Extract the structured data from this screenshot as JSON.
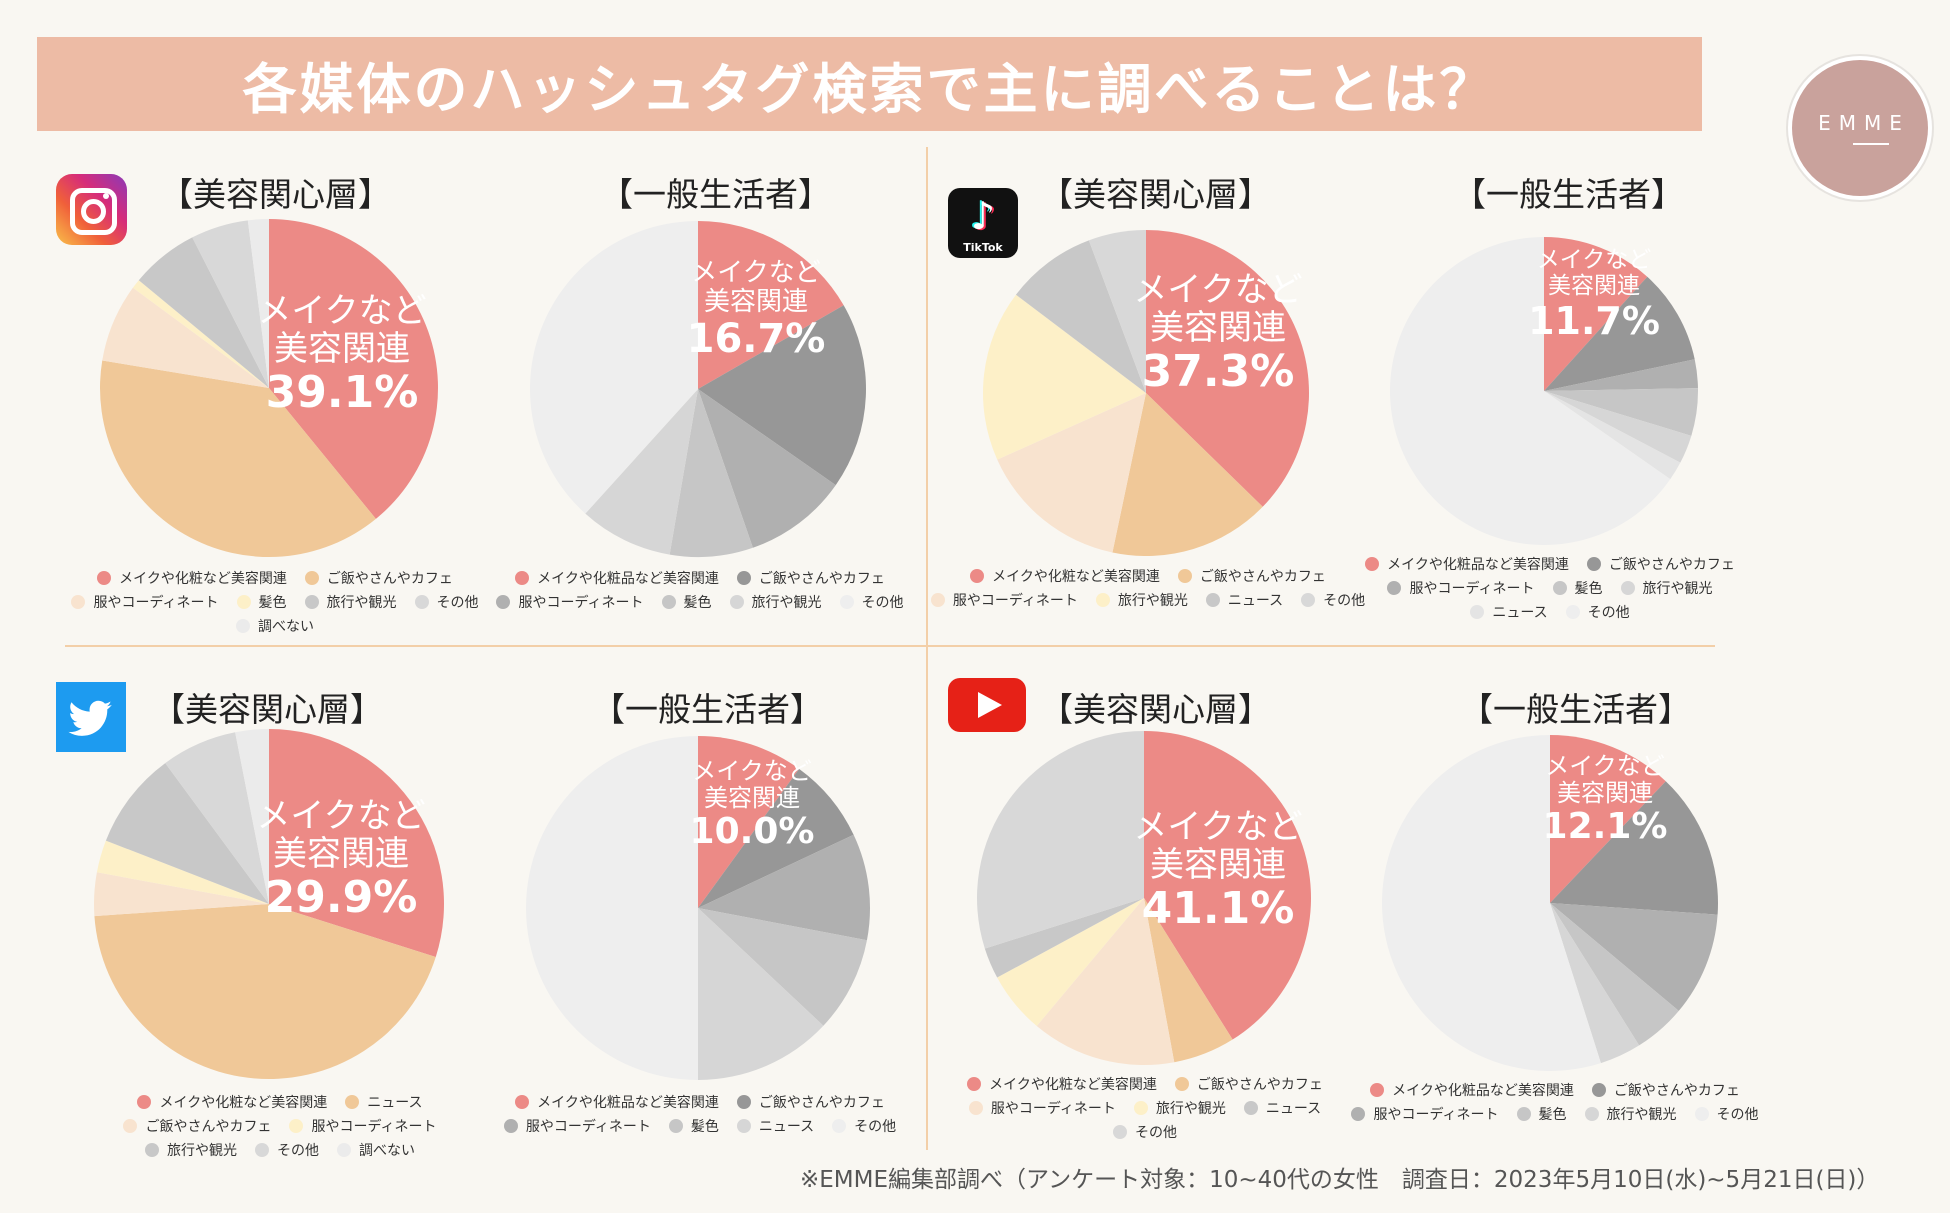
{
  "title": "各媒体のハッシュタグ検索で主に調べることは？",
  "logo_text": "EMME",
  "footer": "※EMME編集部調べ（アンケート対象：10~40代の女性　調査日：2023年5月10日(水)~5月21日(日)）",
  "platforms": [
    {
      "name": "Instagram",
      "icon": "instagram-icon"
    },
    {
      "name": "TikTok",
      "icon": "tiktok-icon",
      "icon_text": "TikTok"
    },
    {
      "name": "Twitter",
      "icon": "twitter-icon"
    },
    {
      "name": "YouTube",
      "icon": "youtube-icon"
    }
  ],
  "headers": {
    "beauty": "【美容関心層】",
    "general": "【一般生活者】"
  },
  "chart_data": [
    {
      "type": "pie",
      "platform": "Instagram",
      "title": "【美容関心層】",
      "label_lines": [
        "メイクなど",
        "美容関連"
      ],
      "data_label": "39.1%",
      "series": [
        {
          "name": "メイクや化粧など美容関連",
          "value": 39.1,
          "color": "#ec8a86"
        },
        {
          "name": "ご飯やさんやカフェ",
          "value": 38.5,
          "color": "#f0c898"
        },
        {
          "name": "服やコーディネート",
          "value": 7.5,
          "color": "#f8e3cf"
        },
        {
          "name": "髪色",
          "value": 0.9,
          "color": "#fdf0c8"
        },
        {
          "name": "旅行や観光",
          "value": 6.5,
          "color": "#c8c8c8"
        },
        {
          "name": "その他",
          "value": 5.5,
          "color": "#d8d8d8"
        },
        {
          "name": "調べない",
          "value": 2.0,
          "color": "#ebebeb"
        }
      ]
    },
    {
      "type": "pie",
      "platform": "Instagram",
      "title": "【一般生活者】",
      "label_lines": [
        "メイクなど",
        "美容関連"
      ],
      "data_label": "16.7%",
      "series": [
        {
          "name": "メイクや化粧品など美容関連",
          "value": 16.7,
          "color": "#ec8a86"
        },
        {
          "name": "ご飯やさんやカフェ",
          "value": 18,
          "color": "#979797"
        },
        {
          "name": "服やコーディネート",
          "value": 10,
          "color": "#b0b0b0"
        },
        {
          "name": "髪色",
          "value": 8,
          "color": "#c6c6c6"
        },
        {
          "name": "旅行や観光",
          "value": 9,
          "color": "#d6d6d6"
        },
        {
          "name": "その他",
          "value": 38.3,
          "color": "#eeeeee"
        }
      ]
    },
    {
      "type": "pie",
      "platform": "TikTok",
      "title": "【美容関心層】",
      "label_lines": [
        "メイクなど",
        "美容関連"
      ],
      "data_label": "37.3%",
      "series": [
        {
          "name": "メイクや化粧など美容関連",
          "value": 37.3,
          "color": "#ec8a86"
        },
        {
          "name": "ご飯やさんやカフェ",
          "value": 16,
          "color": "#f0c898"
        },
        {
          "name": "服やコーディネート",
          "value": 15,
          "color": "#f8e3cf"
        },
        {
          "name": "旅行や観光",
          "value": 17,
          "color": "#fdf0c8"
        },
        {
          "name": "ニュース",
          "value": 9,
          "color": "#c8c8c8"
        },
        {
          "name": "その他",
          "value": 5.7,
          "color": "#d8d8d8"
        }
      ]
    },
    {
      "type": "pie",
      "platform": "TikTok",
      "title": "【一般生活者】",
      "label_lines": [
        "メイクなど",
        "美容関連"
      ],
      "data_label": "11.7%",
      "series": [
        {
          "name": "メイクや化粧品など美容関連",
          "value": 11.7,
          "color": "#ec8a86"
        },
        {
          "name": "ご飯やさんやカフェ",
          "value": 10,
          "color": "#979797"
        },
        {
          "name": "服やコーディネート",
          "value": 3,
          "color": "#b0b0b0"
        },
        {
          "name": "髪色",
          "value": 5,
          "color": "#c6c6c6"
        },
        {
          "name": "旅行や観光",
          "value": 3,
          "color": "#d6d6d6"
        },
        {
          "name": "ニュース",
          "value": 2,
          "color": "#e4e4e4"
        },
        {
          "name": "その他",
          "value": 65.3,
          "color": "#eeeeee"
        }
      ]
    },
    {
      "type": "pie",
      "platform": "Twitter",
      "title": "【美容関心層】",
      "label_lines": [
        "メイクなど",
        "美容関連"
      ],
      "data_label": "29.9%",
      "series": [
        {
          "name": "メイクや化粧など美容関連",
          "value": 29.9,
          "color": "#ec8a86"
        },
        {
          "name": "ニュース",
          "value": 44,
          "color": "#f0c898"
        },
        {
          "name": "ご飯やさんやカフェ",
          "value": 4,
          "color": "#f8e3cf"
        },
        {
          "name": "服やコーディネート",
          "value": 3,
          "color": "#fdf0c8"
        },
        {
          "name": "旅行や観光",
          "value": 9,
          "color": "#c8c8c8"
        },
        {
          "name": "その他",
          "value": 7,
          "color": "#d8d8d8"
        },
        {
          "name": "調べない",
          "value": 3.1,
          "color": "#ebebeb"
        }
      ]
    },
    {
      "type": "pie",
      "platform": "Twitter",
      "title": "【一般生活者】",
      "label_lines": [
        "メイクなど",
        "美容関連"
      ],
      "data_label": "10.0%",
      "series": [
        {
          "name": "メイクや化粧品など美容関連",
          "value": 10.0,
          "color": "#ec8a86"
        },
        {
          "name": "ご飯やさんやカフェ",
          "value": 8,
          "color": "#979797"
        },
        {
          "name": "服やコーディネート",
          "value": 10,
          "color": "#b0b0b0"
        },
        {
          "name": "髪色",
          "value": 9,
          "color": "#c6c6c6"
        },
        {
          "name": "ニュース",
          "value": 13,
          "color": "#d6d6d6"
        },
        {
          "name": "その他",
          "value": 50,
          "color": "#eeeeee"
        }
      ]
    },
    {
      "type": "pie",
      "platform": "YouTube",
      "title": "【美容関心層】",
      "label_lines": [
        "メイクなど",
        "美容関連"
      ],
      "data_label": "41.1%",
      "series": [
        {
          "name": "メイクや化粧など美容関連",
          "value": 41.1,
          "color": "#ec8a86"
        },
        {
          "name": "ご飯やさんやカフェ",
          "value": 6,
          "color": "#f0c898"
        },
        {
          "name": "服やコーディネート",
          "value": 14,
          "color": "#f8e3cf"
        },
        {
          "name": "旅行や観光",
          "value": 6,
          "color": "#fdf0c8"
        },
        {
          "name": "ニュース",
          "value": 3,
          "color": "#c8c8c8"
        },
        {
          "name": "その他",
          "value": 29.9,
          "color": "#d8d8d8"
        }
      ]
    },
    {
      "type": "pie",
      "platform": "YouTube",
      "title": "【一般生活者】",
      "label_lines": [
        "メイクなど",
        "美容関連"
      ],
      "data_label": "12.1%",
      "series": [
        {
          "name": "メイクや化粧品など美容関連",
          "value": 12.1,
          "color": "#ec8a86"
        },
        {
          "name": "ご飯やさんやカフェ",
          "value": 14,
          "color": "#979797"
        },
        {
          "name": "服やコーディネート",
          "value": 10,
          "color": "#b0b0b0"
        },
        {
          "name": "髪色",
          "value": 5,
          "color": "#c6c6c6"
        },
        {
          "name": "旅行や観光",
          "value": 4,
          "color": "#d6d6d6"
        },
        {
          "name": "その他",
          "value": 54.9,
          "color": "#eeeeee"
        }
      ]
    }
  ]
}
